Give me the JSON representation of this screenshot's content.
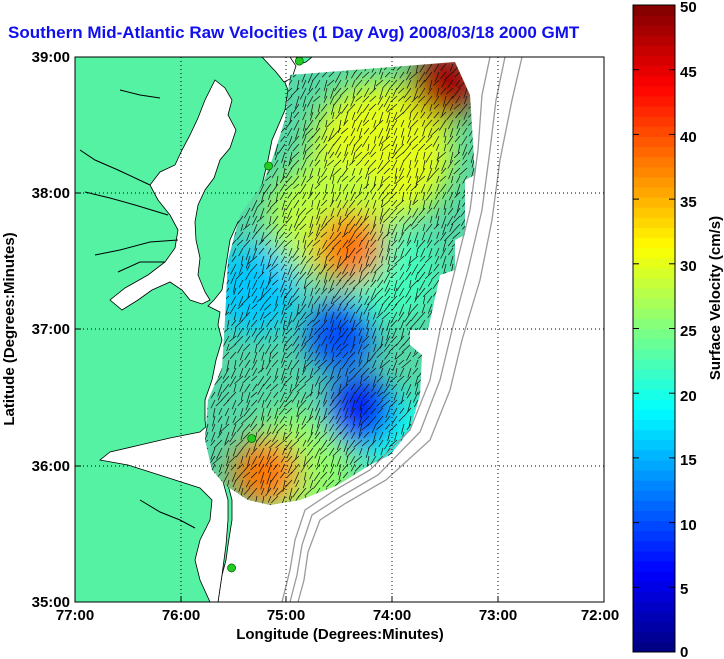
{
  "title": "Southern Mid-Atlantic Raw Velocities (1 Day Avg) 2008/03/18 2000 GMT",
  "map": {
    "xlabel": "Longitude (Degrees:Minutes)",
    "ylabel": "Latitude (Degrees:Minutes)",
    "x_ticks": [
      "77:00",
      "76:00",
      "75:00",
      "74:00",
      "73:00",
      "72:00"
    ],
    "y_ticks": [
      "39:00",
      "38:00",
      "37:00",
      "36:00",
      "35:00"
    ],
    "lon_range": [
      -77,
      -72
    ],
    "lat_range": [
      35,
      39
    ],
    "grid": "dotted",
    "land_color": "#55f2a4",
    "water_color": "#ffffff",
    "coastline_color": "#000000",
    "isobath_color": "#9a9a9a",
    "station_color": "#22cc22",
    "stations": [
      {
        "lon": -74.88,
        "lat": 38.97
      },
      {
        "lon": -75.17,
        "lat": 38.2
      },
      {
        "lon": -75.33,
        "lat": 36.2
      },
      {
        "lon": -75.52,
        "lat": 35.25
      }
    ]
  },
  "colorbar": {
    "label": "Surface Velocity (cm/s)",
    "ticks": [
      "50",
      "45",
      "40",
      "35",
      "30",
      "25",
      "20",
      "15",
      "10",
      "5",
      "0"
    ],
    "range": [
      0,
      50
    ],
    "colormap": "jet"
  },
  "chart_data": {
    "type": "heatmap",
    "title": "Southern Mid-Atlantic Raw Velocities (1 Day Avg) 2008/03/18 2000 GMT",
    "xlabel": "Longitude (Degrees:Minutes)",
    "ylabel": "Latitude (Degrees:Minutes)",
    "xlim": [
      -77,
      -72
    ],
    "ylim": [
      35,
      39
    ],
    "colorbar_label": "Surface Velocity (cm/s)",
    "colorbar_range": [
      0,
      50
    ],
    "speed_hotspots": [
      {
        "lon": -73.5,
        "lat": 38.8,
        "speed": 48
      },
      {
        "lon": -74.4,
        "lat": 37.6,
        "speed": 38
      },
      {
        "lon": -75.2,
        "lat": 35.95,
        "speed": 38
      },
      {
        "lon": -74.3,
        "lat": 36.4,
        "speed": 8
      },
      {
        "lon": -74.5,
        "lat": 36.95,
        "speed": 10
      }
    ]
  }
}
